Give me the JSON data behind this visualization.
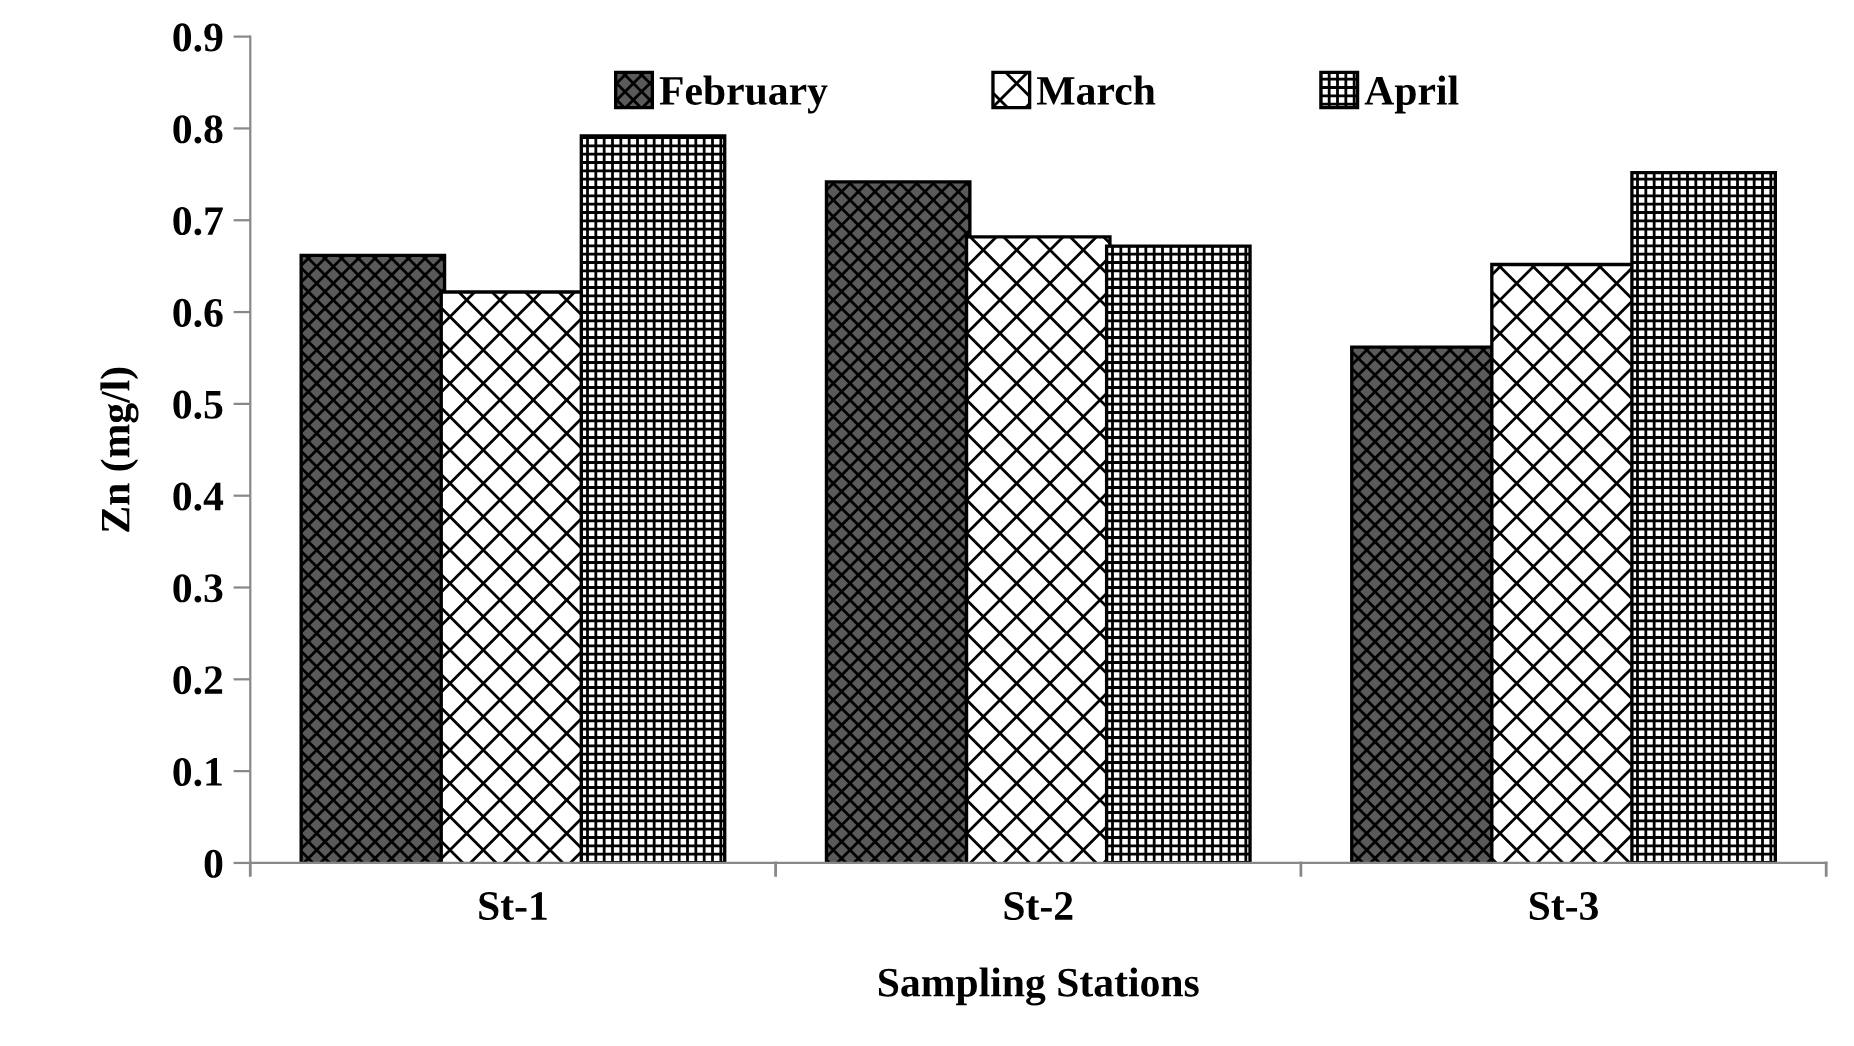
{
  "chart_data": {
    "type": "bar",
    "xlabel": "Sampling Stations",
    "ylabel": "Zn (mg/l)",
    "categories": [
      "St-1",
      "St-2",
      "St-3"
    ],
    "series": [
      {
        "name": "February",
        "color": "#5a5a5a",
        "values": [
          0.66,
          0.74,
          0.56
        ]
      },
      {
        "name": "March",
        "color": "#ffffff",
        "values": [
          0.62,
          0.68,
          0.65
        ]
      },
      {
        "name": "April",
        "color": "#ffffff",
        "values": [
          0.79,
          0.67,
          0.75
        ]
      }
    ],
    "ylim": [
      0,
      0.9
    ],
    "yticks": [
      0,
      0.1,
      0.2,
      0.3,
      0.4,
      0.5,
      0.6,
      0.7,
      0.8,
      0.9
    ],
    "grid": false,
    "legend": "top"
  }
}
